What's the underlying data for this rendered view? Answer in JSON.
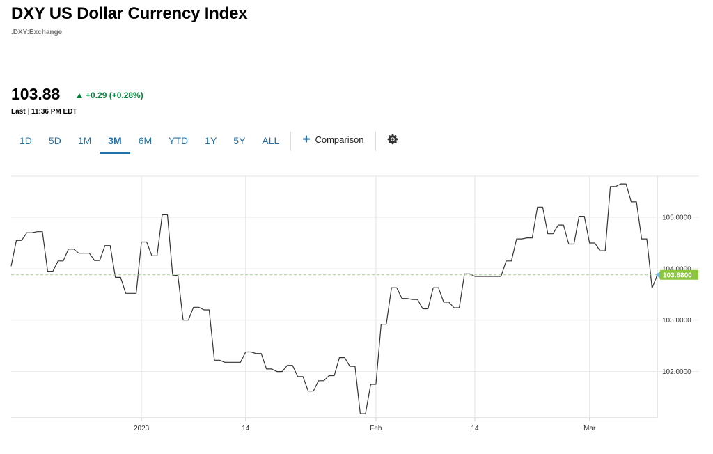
{
  "header": {
    "title": "DXY US Dollar Currency Index",
    "symbol": ".DXY:Exchange"
  },
  "quote": {
    "price": "103.88",
    "change": "+0.29 (+0.28%)",
    "last_label": "Last",
    "separator": "|",
    "time": "11:36 PM EDT"
  },
  "tabs": [
    {
      "label": "1D"
    },
    {
      "label": "5D"
    },
    {
      "label": "1M"
    },
    {
      "label": "3M",
      "active": true
    },
    {
      "label": "6M"
    },
    {
      "label": "YTD"
    },
    {
      "label": "1Y"
    },
    {
      "label": "5Y"
    },
    {
      "label": "ALL"
    }
  ],
  "toolbar": {
    "comparison_label": "Comparison",
    "settings_icon": "gear-icon"
  },
  "colors": {
    "accent": "#2170a8",
    "up": "#00873c",
    "line": "#333333",
    "last_marker": "#8cc63f"
  },
  "chart_data": {
    "type": "line",
    "title": "",
    "xlabel": "",
    "ylabel": "",
    "x_ticks": [
      {
        "label": "2023",
        "index": 25
      },
      {
        "label": "14",
        "index": 45
      },
      {
        "label": "Feb",
        "index": 70
      },
      {
        "label": "14",
        "index": 89
      },
      {
        "label": "Mar",
        "index": 111
      }
    ],
    "y_ticks": [
      "102.0000",
      "103.0000",
      "104.0000",
      "105.0000"
    ],
    "ylim": [
      101.1,
      105.8
    ],
    "grid": true,
    "last_value": "103.8800",
    "last_value_num": 103.88,
    "series": [
      {
        "values": [
          104.05,
          104.55,
          104.55,
          104.7,
          104.7,
          104.72,
          104.72,
          103.95,
          103.95,
          104.15,
          104.15,
          104.38,
          104.38,
          104.3,
          104.3,
          104.3,
          104.16,
          104.16,
          104.45,
          104.45,
          103.83,
          103.83,
          103.52,
          103.52,
          103.52,
          104.52,
          104.52,
          104.25,
          104.25,
          105.05,
          105.05,
          103.87,
          103.87,
          103.0,
          103.0,
          103.25,
          103.25,
          103.2,
          103.2,
          102.22,
          102.22,
          102.18,
          102.18,
          102.18,
          102.18,
          102.38,
          102.38,
          102.35,
          102.35,
          102.05,
          102.05,
          102.0,
          102.0,
          102.12,
          102.12,
          101.9,
          101.9,
          101.62,
          101.62,
          101.82,
          101.82,
          101.92,
          101.92,
          102.27,
          102.27,
          102.1,
          102.1,
          101.18,
          101.18,
          101.75,
          101.75,
          102.92,
          102.92,
          103.63,
          103.63,
          103.42,
          103.42,
          103.4,
          103.4,
          103.22,
          103.22,
          103.63,
          103.63,
          103.35,
          103.35,
          103.24,
          103.24,
          103.9,
          103.9,
          103.85,
          103.85,
          103.85,
          103.85,
          103.85,
          103.85,
          104.15,
          104.15,
          104.58,
          104.58,
          104.6,
          104.6,
          105.2,
          105.2,
          104.68,
          104.68,
          104.85,
          104.85,
          104.48,
          104.48,
          105.02,
          105.02,
          104.5,
          104.5,
          104.35,
          104.35,
          105.6,
          105.6,
          105.65,
          105.65,
          105.3,
          105.3,
          104.58,
          104.58,
          103.62,
          103.88
        ]
      }
    ]
  }
}
